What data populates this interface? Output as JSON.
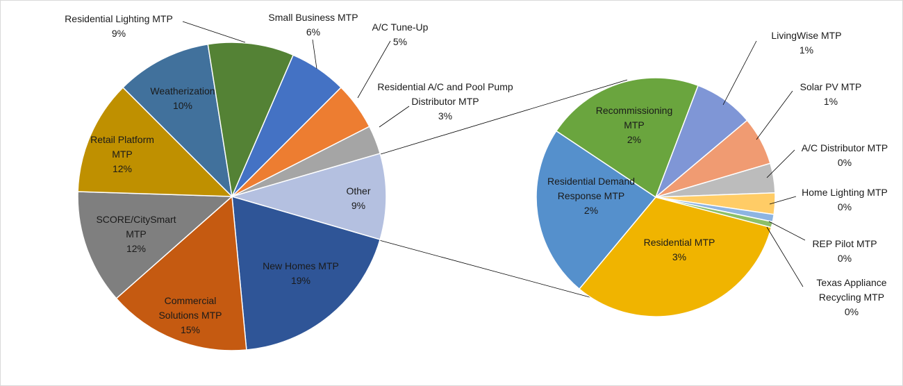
{
  "chart_data": [
    {
      "type": "pie",
      "categories": [
        "New Homes MTP",
        "Commercial Solutions MTP",
        "SCORE/CitySmart MTP",
        "Retail Platform MTP",
        "Weatherization",
        "Residential Lighting MTP",
        "Small Business MTP",
        "A/C Tune-Up",
        "Residential A/C and Pool Pump Distributor MTP",
        "Other"
      ],
      "values": [
        19,
        15,
        12,
        12,
        10,
        9,
        6,
        5,
        3,
        9
      ],
      "value_labels": [
        "19%",
        "15%",
        "12%",
        "12%",
        "10%",
        "9%",
        "6%",
        "5%",
        "3%",
        "9%"
      ],
      "colors": [
        "#2f5597",
        "#c55a11",
        "#7f7f7f",
        "#bf9000",
        "#41719c",
        "#548235",
        "#4472c4",
        "#ed7d31",
        "#a5a5a5",
        "#b4c0e0"
      ]
    },
    {
      "type": "pie",
      "categories": [
        "Residential MTP",
        "Residential Demand Response MTP",
        "Recommissioning MTP",
        "LivingWise MTP",
        "Solar PV MTP",
        "A/C Distributor MTP",
        "Home Lighting MTP",
        "REP Pilot MTP",
        "Texas Appliance Recycling MTP"
      ],
      "values": [
        2.88,
        2.1,
        1.93,
        0.73,
        0.59,
        0.36,
        0.26,
        0.09,
        0.07
      ],
      "value_labels": [
        "3%",
        "2%",
        "2%",
        "1%",
        "1%",
        "0%",
        "0%",
        "0%",
        "0%"
      ],
      "colors": [
        "#f0b400",
        "#5590cc",
        "#6aa53e",
        "#7f96d6",
        "#f09b72",
        "#bcbcbc",
        "#ffcc66",
        "#8db4e2",
        "#8cbf68"
      ]
    }
  ]
}
